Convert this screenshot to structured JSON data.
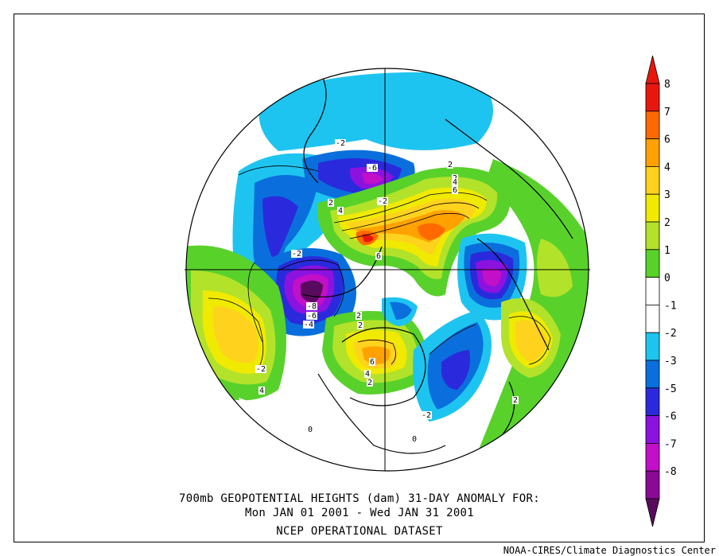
{
  "title": {
    "line1": "700mb GEOPOTENTIAL HEIGHTS (dam)   31-DAY ANOMALY FOR:",
    "line2": "Mon JAN 01 2001 - Wed JAN 31 2001",
    "line3": "NCEP OPERATIONAL DATASET"
  },
  "credit": "NOAA-CIRES/Climate Diagnostics Center",
  "colorbar": {
    "levels": [
      {
        "label": "8",
        "color": "#e8170d"
      },
      {
        "label": "7",
        "color": "#ff6a00"
      },
      {
        "label": "6",
        "color": "#ffa200"
      },
      {
        "label": "4",
        "color": "#ffd21e"
      },
      {
        "label": "3",
        "color": "#f0ea00"
      },
      {
        "label": "2",
        "color": "#b3e22a"
      },
      {
        "label": "1",
        "color": "#59d12b"
      },
      {
        "label": "0",
        "color": "#ffffff"
      },
      {
        "label": "-1",
        "color": "#ffffff"
      },
      {
        "label": "-2",
        "color": "#1ec4f0"
      },
      {
        "label": "-3",
        "color": "#0a6fdc"
      },
      {
        "label": "-5",
        "color": "#2a2adc"
      },
      {
        "label": "-6",
        "color": "#8c12e0"
      },
      {
        "label": "-7",
        "color": "#c20fc8"
      },
      {
        "label": "-8",
        "color": "#8a0a96"
      }
    ],
    "top_color": "#e8170d",
    "bottom_color": "#5a0a5e"
  },
  "contour_labels": [
    "-6",
    "-2",
    "2",
    "4",
    "6",
    "-2",
    "-2",
    "-8",
    "-6",
    "-4",
    "-2",
    "4",
    "2",
    "2",
    "6",
    "4",
    "2",
    "-2",
    "0",
    "0",
    "2",
    "2",
    "4",
    "6",
    "-2",
    "6",
    "2"
  ]
}
